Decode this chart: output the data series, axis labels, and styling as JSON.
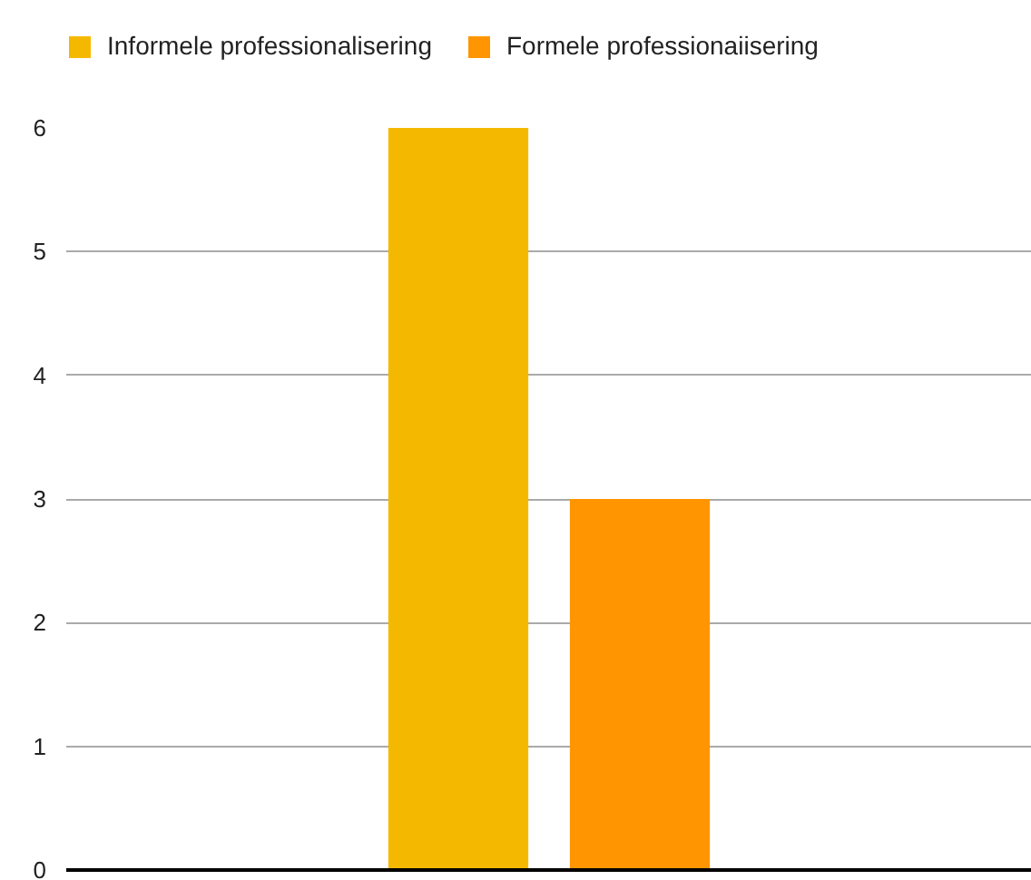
{
  "chart_data": {
    "type": "bar",
    "categories": [
      null
    ],
    "series": [
      {
        "name": "Informele professionalisering",
        "color": "#f5b800",
        "values": [
          6
        ]
      },
      {
        "name": "Formele professionaiisering",
        "color": "#ff9500",
        "values": [
          3
        ]
      }
    ],
    "ylim": [
      0,
      6
    ],
    "yticks": [
      0,
      1,
      2,
      3,
      4,
      5,
      6
    ],
    "grid": "y",
    "legend": "top",
    "tick_labels": "y"
  }
}
